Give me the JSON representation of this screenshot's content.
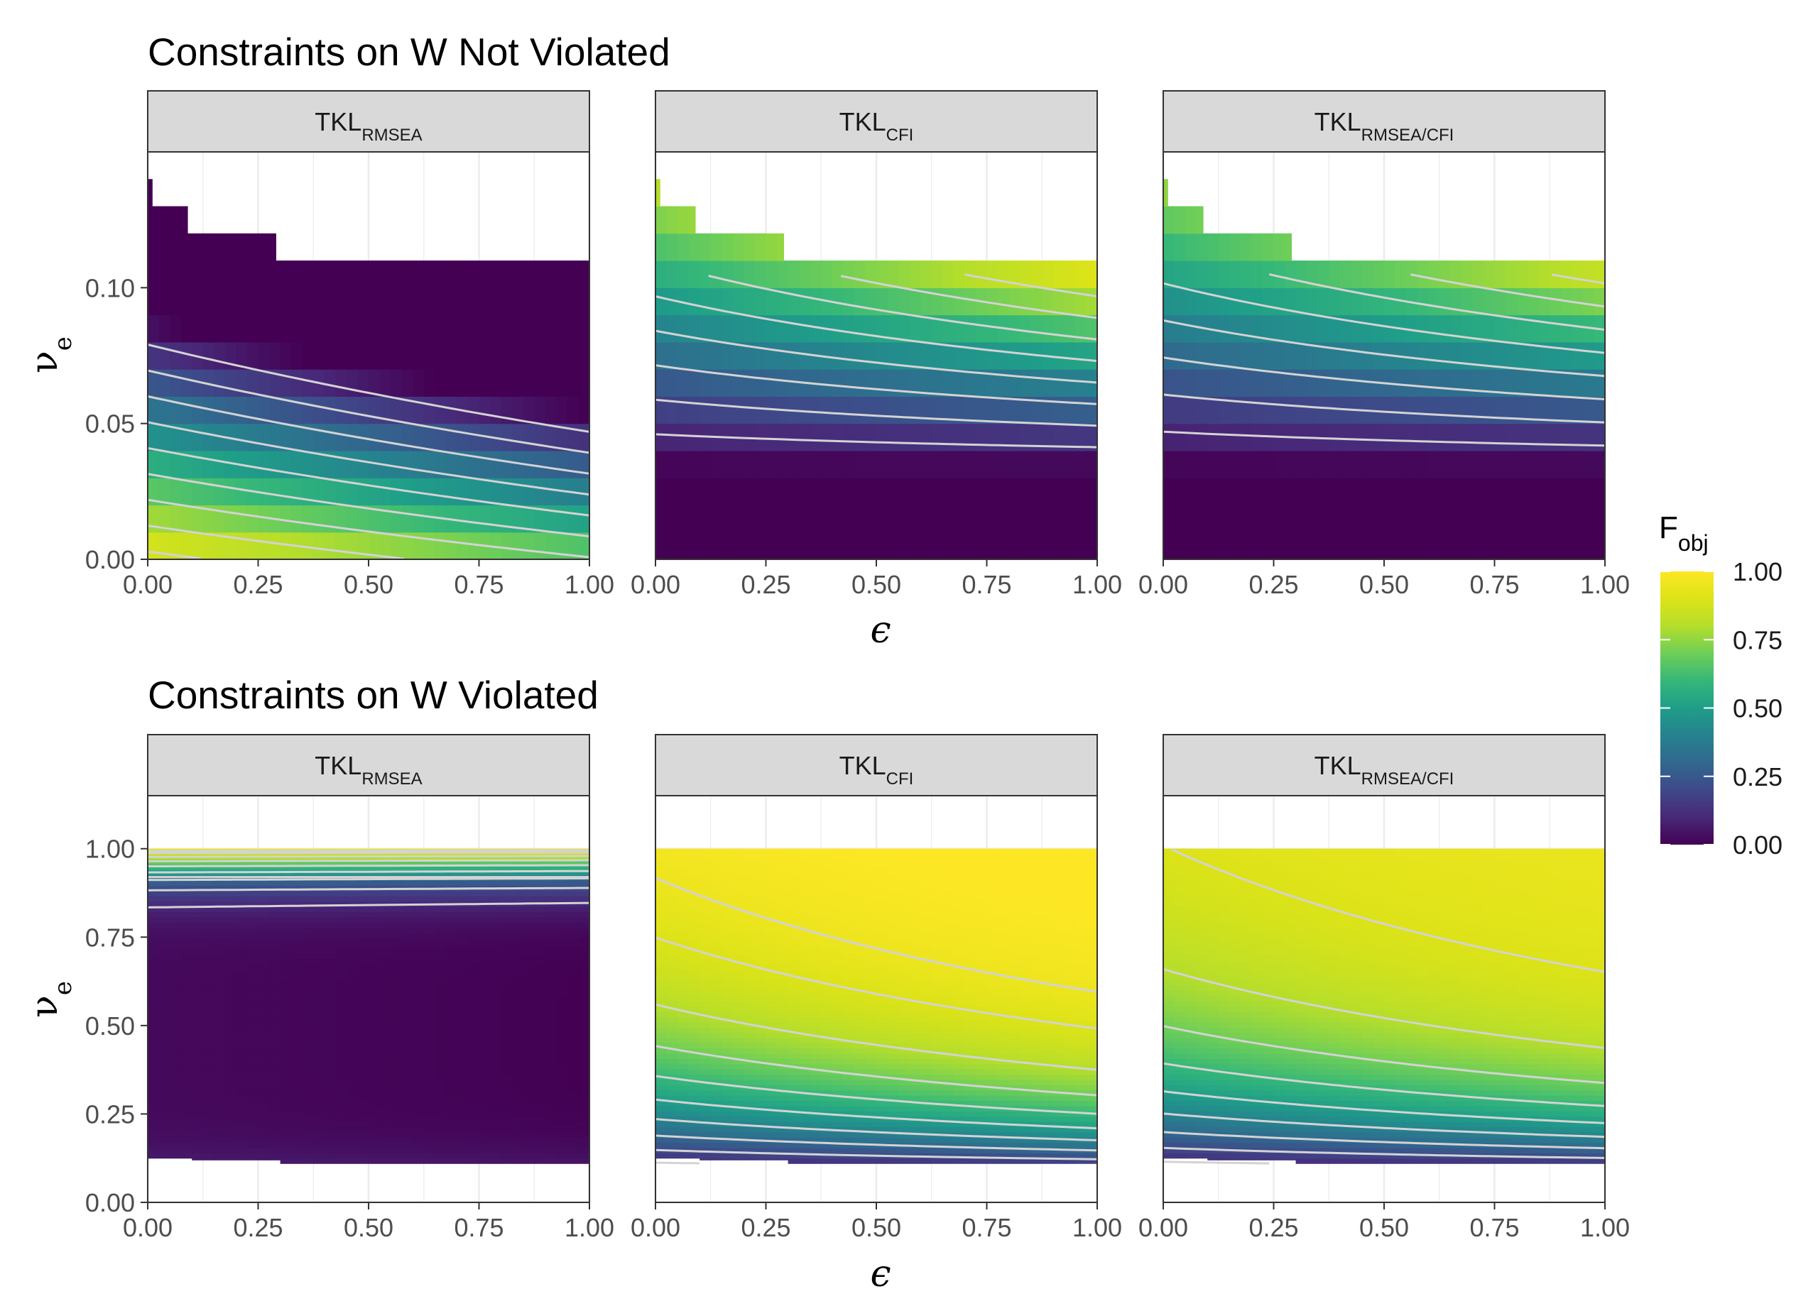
{
  "chart_data": [
    {
      "type": "heatmap",
      "title": "Constraints on W Not Violated",
      "panels": [
        {
          "label": "TKL",
          "label_sub": "RMSEA",
          "metric": "rmsea"
        },
        {
          "label": "TKL",
          "label_sub": "CFI",
          "metric": "cfi"
        },
        {
          "label": "TKL",
          "label_sub": "RMSEA/CFI",
          "metric": "both"
        }
      ],
      "xlabel": "ϵ",
      "ylabel": "ν",
      "ylabel_sub": "e",
      "xlim": [
        0,
        1
      ],
      "ylim": [
        0,
        0.15
      ],
      "x_ticks": [
        "0.00",
        "0.25",
        "0.50",
        "0.75",
        "1.00"
      ],
      "y_ticks": [
        {
          "value": 0.0,
          "label": "0.00"
        },
        {
          "value": 0.05,
          "label": "0.05"
        },
        {
          "value": 0.1,
          "label": "0.10"
        }
      ],
      "nu_e_values": [
        0.005,
        0.015,
        0.025,
        0.035,
        0.045,
        0.055,
        0.065,
        0.075,
        0.085,
        0.095,
        0.105,
        0.115,
        0.125,
        0.135
      ],
      "valid_region": [
        {
          "nu_e_max": 0.105,
          "epsilon_max": 1.0
        },
        {
          "nu_e_max": 0.115,
          "epsilon_max": 0.29
        },
        {
          "nu_e_max": 0.125,
          "epsilon_max": 0.09
        },
        {
          "nu_e_max": 0.135,
          "epsilon_max": 0.01
        }
      ],
      "grid": true
    },
    {
      "type": "heatmap",
      "title": "Constraints on W Violated",
      "panels": [
        {
          "label": "TKL",
          "label_sub": "RMSEA",
          "metric": "rmsea"
        },
        {
          "label": "TKL",
          "label_sub": "CFI",
          "metric": "cfi"
        },
        {
          "label": "TKL",
          "label_sub": "RMSEA/CFI",
          "metric": "both"
        }
      ],
      "xlabel": "ϵ",
      "ylabel": "ν",
      "ylabel_sub": "e",
      "xlim": [
        0,
        1
      ],
      "ylim": [
        0,
        1.15
      ],
      "x_ticks": [
        "0.00",
        "0.25",
        "0.50",
        "0.75",
        "1.00"
      ],
      "y_ticks": [
        {
          "value": 0.0,
          "label": "0.00"
        },
        {
          "value": 0.25,
          "label": "0.25"
        },
        {
          "value": 0.5,
          "label": "0.50"
        },
        {
          "value": 0.75,
          "label": "0.75"
        },
        {
          "value": 1.0,
          "label": "1.00"
        }
      ],
      "nu_e_range": [
        0.11,
        1.0
      ],
      "valid_region_bottom": [
        {
          "epsilon_max": 0.01,
          "nu_e_min": 0.13
        },
        {
          "epsilon_max": 0.09,
          "nu_e_min": 0.125
        },
        {
          "epsilon_max": 0.29,
          "nu_e_min": 0.12
        },
        {
          "epsilon_max": 1.0,
          "nu_e_min": 0.11
        }
      ],
      "grid": true
    }
  ],
  "legend": {
    "title": "F",
    "title_sub": "obj",
    "range": [
      0,
      1
    ],
    "ticks": [
      "0.00",
      "0.25",
      "0.50",
      "0.75",
      "1.00"
    ],
    "colormap": "viridis",
    "placement": "right"
  },
  "colors": {
    "strip_fill": "#d9d9d9",
    "panel_border": "#333333",
    "grid_major": "#ebebeb",
    "contour": "#d3d3d3"
  }
}
